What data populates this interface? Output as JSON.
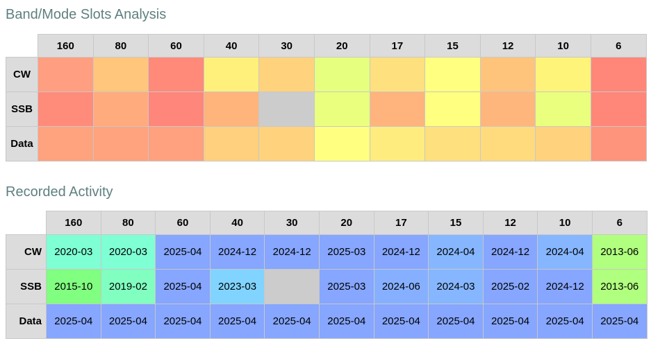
{
  "slots": {
    "title": "Band/Mode Slots Analysis",
    "bands": [
      "160",
      "80",
      "60",
      "40",
      "30",
      "20",
      "17",
      "15",
      "12",
      "10",
      "6"
    ],
    "rows": [
      {
        "mode": "CW",
        "colors": [
          "#ff9e80",
          "#ffc67c",
          "#ff8a7a",
          "#fff07c",
          "#ffd27e",
          "#e6ff7e",
          "#ffe07e",
          "#ffff80",
          "#ffc47c",
          "#fff47a",
          "#ff8779"
        ]
      },
      {
        "mode": "SSB",
        "colors": [
          "#ff8b7a",
          "#ffab7e",
          "#ff867a",
          "#ffb47c",
          "#cccccc",
          "#eaff7e",
          "#ffb47e",
          "#ffff80",
          "#ffb67c",
          "#eaff7e",
          "#ff8779"
        ]
      },
      {
        "mode": "Data",
        "colors": [
          "#ffa27e",
          "#ffa27e",
          "#ffa07e",
          "#ffd07e",
          "#ffd27e",
          "#ffff80",
          "#ffec7e",
          "#ffe07e",
          "#ffdb7e",
          "#ffd27e",
          "#ff947c"
        ]
      }
    ]
  },
  "activity": {
    "title": "Recorded Activity",
    "bands": [
      "160",
      "80",
      "60",
      "40",
      "30",
      "20",
      "17",
      "15",
      "12",
      "10",
      "6"
    ],
    "rows": [
      {
        "mode": "CW",
        "cells": [
          {
            "text": "2020-03",
            "color": "#7fffd4"
          },
          {
            "text": "2020-03",
            "color": "#7fffd4"
          },
          {
            "text": "2025-04",
            "color": "#86a6ff"
          },
          {
            "text": "2024-12",
            "color": "#86a6ff"
          },
          {
            "text": "2024-12",
            "color": "#86a6ff"
          },
          {
            "text": "2025-03",
            "color": "#86a6ff"
          },
          {
            "text": "2024-12",
            "color": "#86a6ff"
          },
          {
            "text": "2024-04",
            "color": "#86b6ff"
          },
          {
            "text": "2024-12",
            "color": "#86a6ff"
          },
          {
            "text": "2024-04",
            "color": "#86b6ff"
          },
          {
            "text": "2013-06",
            "color": "#b0ff7e"
          }
        ]
      },
      {
        "mode": "SSB",
        "cells": [
          {
            "text": "2015-10",
            "color": "#80ff80"
          },
          {
            "text": "2019-02",
            "color": "#80ffc0"
          },
          {
            "text": "2025-04",
            "color": "#86a6ff"
          },
          {
            "text": "2023-03",
            "color": "#80d4ff"
          },
          {
            "text": "",
            "color": "#cccccc"
          },
          {
            "text": "2025-03",
            "color": "#86a6ff"
          },
          {
            "text": "2024-06",
            "color": "#86b0ff"
          },
          {
            "text": "2024-03",
            "color": "#86b6ff"
          },
          {
            "text": "2025-02",
            "color": "#86a6ff"
          },
          {
            "text": "2024-12",
            "color": "#86a6ff"
          },
          {
            "text": "2013-06",
            "color": "#b0ff7e"
          }
        ]
      },
      {
        "mode": "Data",
        "cells": [
          {
            "text": "2025-04",
            "color": "#86a6ff"
          },
          {
            "text": "2025-04",
            "color": "#86a6ff"
          },
          {
            "text": "2025-04",
            "color": "#86a6ff"
          },
          {
            "text": "2025-04",
            "color": "#86a6ff"
          },
          {
            "text": "2025-04",
            "color": "#86a6ff"
          },
          {
            "text": "2025-04",
            "color": "#86a6ff"
          },
          {
            "text": "2025-04",
            "color": "#86a6ff"
          },
          {
            "text": "2025-04",
            "color": "#86a6ff"
          },
          {
            "text": "2025-04",
            "color": "#86a6ff"
          },
          {
            "text": "2025-04",
            "color": "#86a6ff"
          },
          {
            "text": "2025-04",
            "color": "#86a6ff"
          }
        ]
      }
    ]
  }
}
